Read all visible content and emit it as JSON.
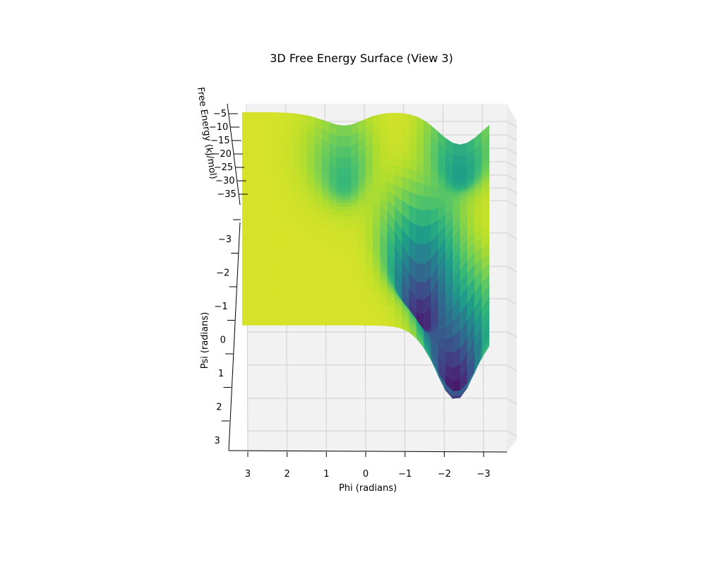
{
  "chart_data": {
    "type": "surface3d",
    "title": "3D Free Energy Surface (View 3)",
    "xlabel": "Phi (radians)",
    "ylabel": "Psi (radians)",
    "zlabel": "Free Energy (kJ/mol)",
    "x_ticks": [
      "3",
      "2",
      "1",
      "0",
      "−1",
      "−2",
      "−3"
    ],
    "y_ticks": [
      "−3",
      "−2",
      "−1",
      "0",
      "1",
      "2",
      "3"
    ],
    "z_ticks": [
      "−5",
      "−10",
      "−15",
      "−20",
      "−25",
      "−30",
      "−35"
    ],
    "xlim": [
      -3.14,
      3.14
    ],
    "ylim": [
      -3.14,
      3.14
    ],
    "zlim": [
      -38,
      -5
    ],
    "colormap": "viridis",
    "minima": [
      {
        "phi": -1.4,
        "psi": 0.4,
        "free_energy": -35
      },
      {
        "phi": -2.3,
        "psi": 2.4,
        "free_energy": -36
      },
      {
        "phi": 0.9,
        "psi": -2.0,
        "free_energy": -28
      },
      {
        "phi": -2.4,
        "psi": -2.5,
        "free_energy": -20
      }
    ],
    "max_free_energy": -7
  }
}
